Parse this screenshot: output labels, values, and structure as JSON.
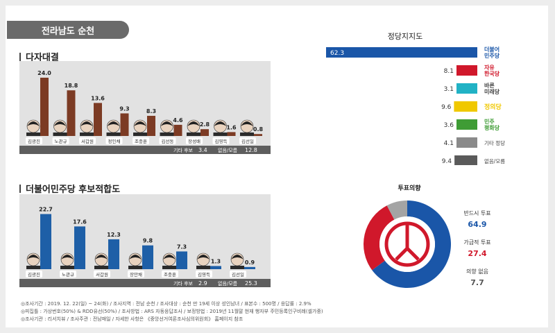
{
  "region": "전라남도 순천",
  "colors": {
    "brown": "#7c3b24",
    "blue": "#1e5fa7",
    "dem": "#1a56a8",
    "lkp": "#d0182b",
    "bari": "#21b2c5",
    "justice": "#f0c800",
    "pdp": "#3f9c35",
    "other": "#8a8a8a",
    "none": "#5a5a5a",
    "pie_gray": "#a4a4a4"
  },
  "chart_data": [
    {
      "type": "bar",
      "title": "다자대결",
      "categories": [
        "김광진",
        "노관규",
        "서갑원",
        "정인채",
        "조충훈",
        "김선동",
        "장성배",
        "김영득",
        "김선일"
      ],
      "values": [
        24.0,
        18.8,
        13.6,
        9.3,
        8.3,
        4.6,
        2.8,
        1.6,
        0.8
      ],
      "value_labels": [
        "24.0",
        "18.8",
        "13.6",
        "9.3",
        "8.3",
        "4.6",
        "2.8",
        "1.6",
        "0.8"
      ],
      "extra": [
        {
          "label": "기타 후보",
          "value": "3.4"
        },
        {
          "label": "없음/모름",
          "value": "12.8"
        }
      ]
    },
    {
      "type": "bar",
      "title": "더불어민주당 후보적합도",
      "categories": [
        "김광진",
        "노관규",
        "서갑원",
        "장만채",
        "조충훈",
        "김영득",
        "김선일"
      ],
      "values": [
        22.7,
        17.6,
        12.3,
        9.8,
        7.3,
        1.3,
        0.9
      ],
      "value_labels": [
        "22.7",
        "17.6",
        "12.3",
        "9.8",
        "7.3",
        "1.3",
        "0.9"
      ],
      "extra": [
        {
          "label": "기타 후보",
          "value": "2.9"
        },
        {
          "label": "없음/모름",
          "value": "25.3"
        }
      ]
    },
    {
      "type": "bar",
      "title": "정당지지도",
      "categories": [
        "더불어민주당",
        "자유한국당",
        "바른미래당",
        "정의당",
        "민주평화당",
        "기타 정당",
        "없음/모름"
      ],
      "values": [
        62.3,
        8.1,
        3.1,
        9.6,
        3.6,
        4.1,
        9.4
      ],
      "value_labels": [
        "62.3",
        "8.1",
        "3.1",
        "9.6",
        "3.6",
        "4.1",
        "9.4"
      ],
      "logo_lines": [
        [
          "더불어",
          "민주당"
        ],
        [
          "자유",
          "한국당"
        ],
        [
          "바른",
          "미래당"
        ],
        [
          "정의당"
        ],
        [
          "민주",
          "평화당"
        ]
      ],
      "plain_labels": [
        "기타 정당",
        "없음/모름"
      ]
    },
    {
      "type": "pie",
      "title": "투표의향",
      "categories": [
        "반드시 투표",
        "가급적 투표",
        "의향 없음"
      ],
      "values": [
        64.9,
        27.4,
        7.7
      ],
      "value_labels": [
        "64.9",
        "27.4",
        "7.7"
      ]
    }
  ],
  "footer": [
    "◎조사기간 : 2019. 12. 22(일) ~ 24(화) / 조사지역 : 전남 순천 / 조사대상 : 순천 만 19세 이상 성인남녀 / 표본수 : 500명 / 응답률 : 2.9%",
    "◎피집틀 : 가상번호(50%) & RDD유선(50%) / 조사방법 : ARS 자동응답조사 / 보정방법 : 2019년 11월말 현재 행자부 주민등록인구비례(셀가중)",
    "◎조사기관 : 리서치뷰 / 조사주관 : 전남매일 / 자세한 사항은 《중앙선거여론조사심의위원회》 홈페이지 참조"
  ]
}
